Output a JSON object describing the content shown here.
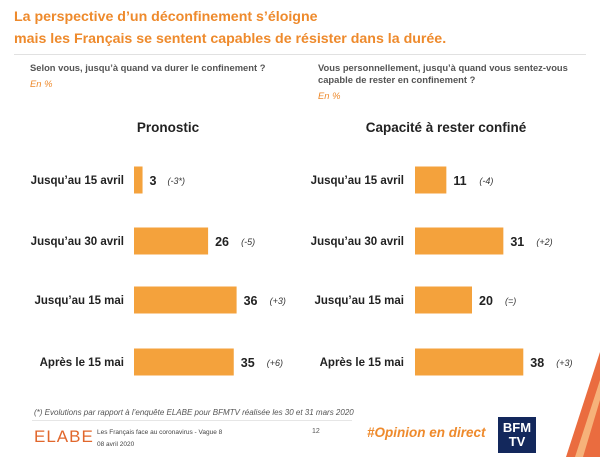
{
  "title_line1": "La perspective d’un déconfinement s’éloigne",
  "title_line2": "mais les Français se sentent capables de résister dans la durée.",
  "question_left": "Selon vous, jusqu’à quand va durer le confinement ?",
  "question_right": "Vous personnellement, jusqu’à quand vous sentez-vous capable de rester en confinement ?",
  "unit_left": "En %",
  "unit_right": "En %",
  "footnote": "(*) Evolutions par rapport à l’enquête ELABE pour BFMTV réalisée les 30 et 31 mars 2020",
  "footer": {
    "logo": "ELABE",
    "study": "Les Français face au coronavirus - Vague 8",
    "date": "08 avril 2020",
    "page": "12",
    "hashtag": "#Opinion en direct",
    "bfm_top": "BFM",
    "bfm_bottom": "TV"
  },
  "colors": {
    "bar": "#f4a23c",
    "accent": "#ee8a2c"
  },
  "chart_data": [
    {
      "type": "bar",
      "orientation": "horizontal",
      "title": "Pronostic",
      "categories": [
        "Jusqu’au 15 avril",
        "Jusqu’au 30 avril",
        "Jusqu’au 15 mai",
        "Après le 15 mai"
      ],
      "values": [
        3,
        26,
        36,
        35
      ],
      "value_labels": [
        "3",
        "26",
        "36",
        "35"
      ],
      "deltas": [
        "(-3*)",
        "(-5)",
        "(+3)",
        "(+6)"
      ],
      "xlim": [
        0,
        40
      ]
    },
    {
      "type": "bar",
      "orientation": "horizontal",
      "title": "Capacité à rester confiné",
      "categories": [
        "Jusqu’au 15 avril",
        "Jusqu’au 30 avril",
        "Jusqu’au 15 mai",
        "Après le 15 mai"
      ],
      "values": [
        11,
        31,
        20,
        38
      ],
      "value_labels": [
        "11",
        "31",
        "20",
        "38"
      ],
      "deltas": [
        "(-4)",
        "(+2)",
        "(=)",
        "(+3)"
      ],
      "xlim": [
        0,
        40
      ]
    }
  ]
}
